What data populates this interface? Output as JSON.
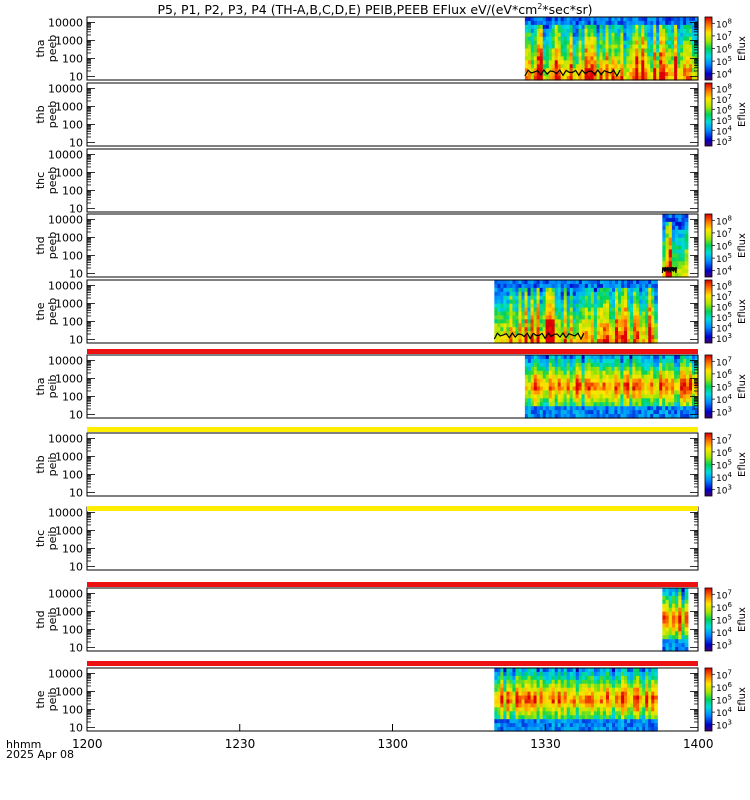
{
  "header": {
    "title_prefix": "P5, P1, P2, P3, P4 (TH-A,B,C,D,E) PEIB,PEEB EFlux eV/(eV*cm",
    "title_sup": "2",
    "title_suffix": "*sec*sr)"
  },
  "footer": {
    "time_format_label": "hhmm",
    "date_label": "2025 Apr 08"
  },
  "colors": {
    "red_bar": "#ee1111",
    "yellow_bar": "#ffee00",
    "no_data_blue": "#0000c0"
  },
  "chart_data": {
    "type": "heatmap",
    "x_axis": {
      "format": "hhmm",
      "range": [
        "1200",
        "1400"
      ],
      "ticks": [
        "1200",
        "1230",
        "1300",
        "1330",
        "1400"
      ]
    },
    "y_axis": {
      "scale": "log",
      "unit": "eV",
      "tick_labels": [
        "10",
        "100",
        "1000",
        "10000"
      ]
    },
    "colorbar_label": "Eflux",
    "panels": [
      {
        "probe": "tha",
        "product": "peeb",
        "data_start": "1326",
        "data_end": "1400",
        "colorbar": [
          "10^4",
          "10^5",
          "10^6",
          "10^7",
          "10^8"
        ],
        "lowcut": true,
        "spin_line": true
      },
      {
        "probe": "thb",
        "product": "peeb",
        "data_start": null,
        "data_end": null,
        "colorbar": [
          "10^3",
          "10^4",
          "10^5",
          "10^6",
          "10^7",
          "10^8"
        ]
      },
      {
        "probe": "thc",
        "product": "peeb",
        "data_start": null,
        "data_end": null,
        "colorbar": null
      },
      {
        "probe": "thd",
        "product": "peeb",
        "data_start": "1353",
        "data_end": "1358",
        "colorbar": [
          "10^4",
          "10^5",
          "10^6",
          "10^7",
          "10^8"
        ],
        "lowcut": true
      },
      {
        "probe": "the",
        "product": "peeb",
        "data_start": "1320",
        "data_end": "1352",
        "colorbar": [
          "10^3",
          "10^4",
          "10^5",
          "10^6",
          "10^7",
          "10^8"
        ],
        "lowcut": true
      },
      {
        "probe": "tha",
        "product": "peib",
        "data_start": "1326",
        "data_end": "1400",
        "colorbar": [
          "10^3",
          "10^4",
          "10^5",
          "10^6",
          "10^7"
        ],
        "bar_above": "red"
      },
      {
        "probe": "thb",
        "product": "peib",
        "data_start": null,
        "data_end": null,
        "colorbar": [
          "10^3",
          "10^4",
          "10^5",
          "10^6",
          "10^7"
        ],
        "bar_above": "yellow"
      },
      {
        "probe": "thc",
        "product": "peib",
        "data_start": null,
        "data_end": null,
        "colorbar": null,
        "bar_above": "yellow"
      },
      {
        "probe": "thd",
        "product": "peib",
        "data_start": "1353",
        "data_end": "1358",
        "colorbar": [
          "10^3",
          "10^4",
          "10^5",
          "10^6",
          "10^7"
        ],
        "bar_above": "red"
      },
      {
        "probe": "the",
        "product": "peib",
        "data_start": "1320",
        "data_end": "1352",
        "colorbar": [
          "10^3",
          "10^4",
          "10^5",
          "10^6",
          "10^7"
        ],
        "bar_above": "red"
      }
    ]
  }
}
